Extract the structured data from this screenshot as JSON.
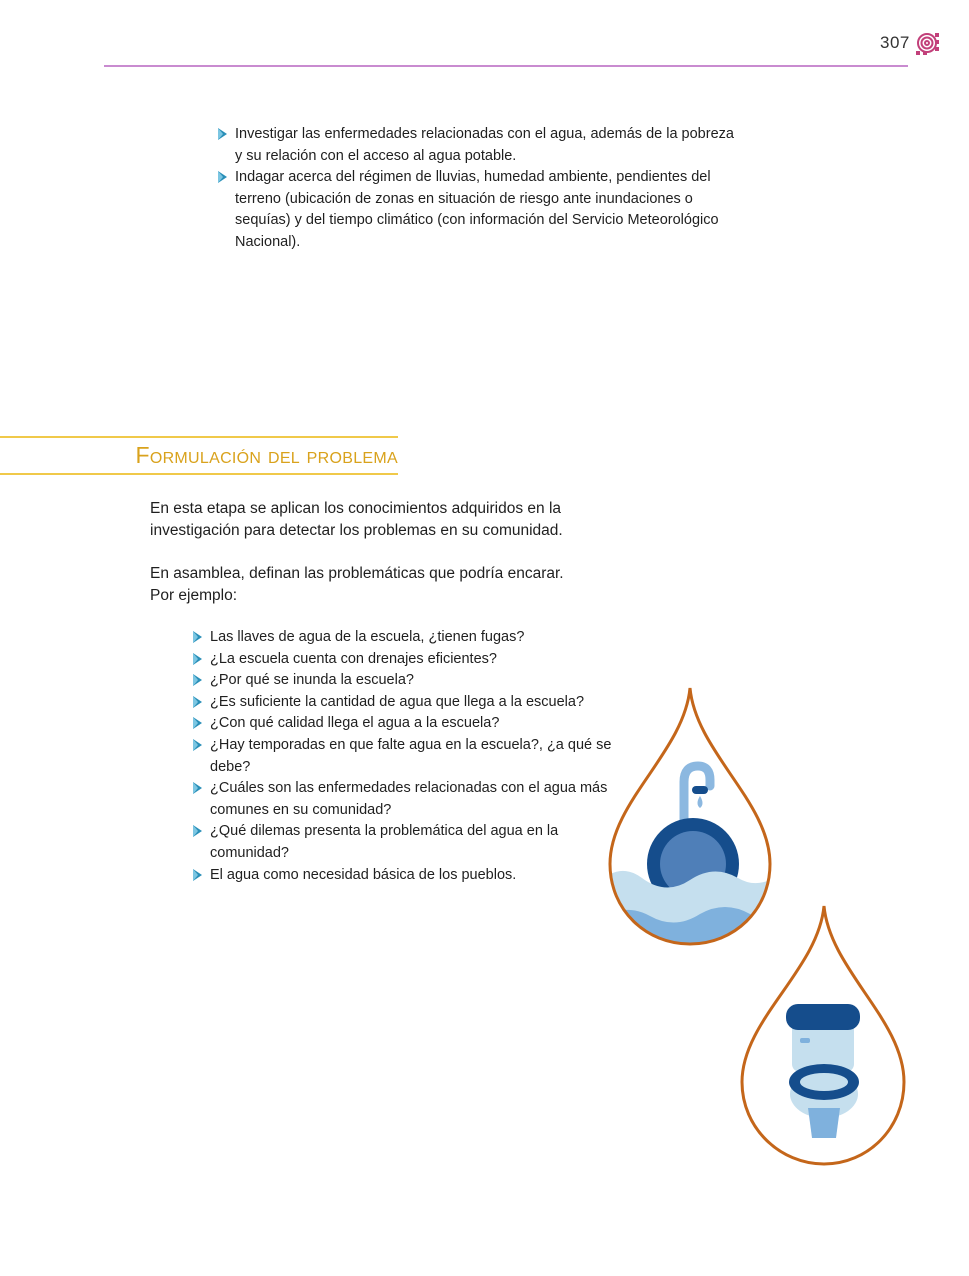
{
  "header": {
    "page_number": "307"
  },
  "intro_bullets": [
    {
      "text": "Investigar las enfermedades relacionadas con el agua, además de la pobreza y su relación con el acceso al agua potable."
    },
    {
      "text": "Indagar acerca del régimen de lluvias, humedad ambiente, pendientes del terreno (ubicación de zonas en situación de riesgo ante inundaciones o sequías) y del tiempo climático (con información del Servicio Meteorológico Nacional)."
    }
  ],
  "section": {
    "title": "Formulación del problema",
    "paragraph1": "En esta etapa se aplican los conocimientos adquiridos en la investigación para detectar los problemas en su comunidad.",
    "paragraph2": "En asamblea, definan las problemáticas que podría encarar. Por ejemplo:"
  },
  "example_bullets": [
    {
      "text": "Las llaves de agua de la escuela, ¿tienen fugas?"
    },
    {
      "text": "¿La escuela cuenta con drenajes eficientes?"
    },
    {
      "text": "¿Por qué se inunda la escuela?"
    },
    {
      "text": "¿Es suficiente la cantidad de agua que llega a la escuela?"
    },
    {
      "text": "¿Con qué calidad llega el agua a la escuela?"
    },
    {
      "text": "¿Hay temporadas en que falte agua en la escuela?, ¿a qué se debe?"
    },
    {
      "text": "¿Cuáles son las enfermedades relacionadas con el agua más comunes en su comunidad?"
    },
    {
      "text": "¿Qué dilemas presenta la problemática del agua en la comunidad?"
    },
    {
      "text": "El agua como necesidad básica de los pueblos."
    }
  ],
  "colors": {
    "header_rule": "#c98bd0",
    "heading_accent": "#d9a21c",
    "bullet_marker": "#2a8fb8",
    "drop_outline": "#c4661a",
    "dark_blue": "#154d8c",
    "light_blue": "#9dc3e6"
  },
  "icons": [
    "page-ornament-icon",
    "bullet-triangle-icon",
    "sink-drop-illustration",
    "toilet-drop-illustration"
  ]
}
